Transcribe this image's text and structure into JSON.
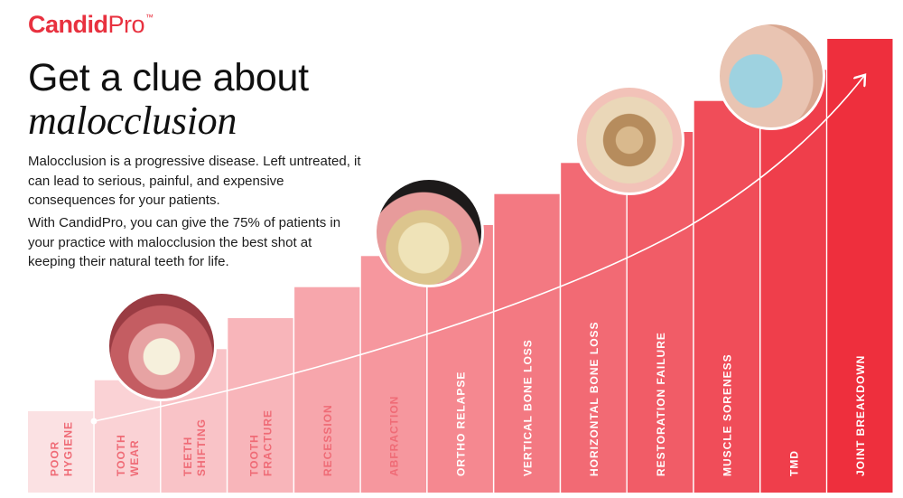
{
  "brand": {
    "name": "Candid",
    "name_suffix": "Pro",
    "trademark": "™"
  },
  "headline": {
    "line1": "Get a clue about",
    "line2": "malocclusion"
  },
  "paragraphs": [
    "Malocclusion is a progressive disease. Left untreated, it can lead to serious, painful, and expensive consequences for your patients.",
    "With CandidPro, you can give the 75% of patients in your practice with malocclusion the best shot at keeping their natural teeth for life."
  ],
  "colors": {
    "brand_red": "#e8313f",
    "bar_light": "#fbe1e3",
    "bar_dark": "#ee2f3d"
  },
  "chart_data": {
    "type": "bar",
    "categories": [
      [
        "POOR",
        "HYGIENE"
      ],
      [
        "TOOTH",
        "WEAR"
      ],
      [
        "TEETH",
        "SHIFTING"
      ],
      [
        "TOOTH",
        "FRACTURE"
      ],
      [
        "RECESSION"
      ],
      [
        "ABFRACTION"
      ],
      [
        "ORTHO RELAPSE"
      ],
      [
        "VERTICAL BONE LOSS"
      ],
      [
        "HORIZONTAL BONE LOSS"
      ],
      [
        "RESTORATION FAILURE"
      ],
      [
        "MUSCLE SORENESS"
      ],
      [
        "TMD"
      ],
      [
        "JOINT BREAKDOWN"
      ]
    ],
    "values": [
      1,
      2,
      3,
      4,
      5,
      6,
      7,
      8,
      9,
      10,
      11,
      12,
      13
    ],
    "trend_arrow": true
  },
  "icons": {
    "photos": [
      "teeth-bite-photo",
      "gum-recession-photo",
      "worn-molar-photo",
      "jaw-pain-photo"
    ],
    "arrow": "trend-arrow-icon"
  }
}
